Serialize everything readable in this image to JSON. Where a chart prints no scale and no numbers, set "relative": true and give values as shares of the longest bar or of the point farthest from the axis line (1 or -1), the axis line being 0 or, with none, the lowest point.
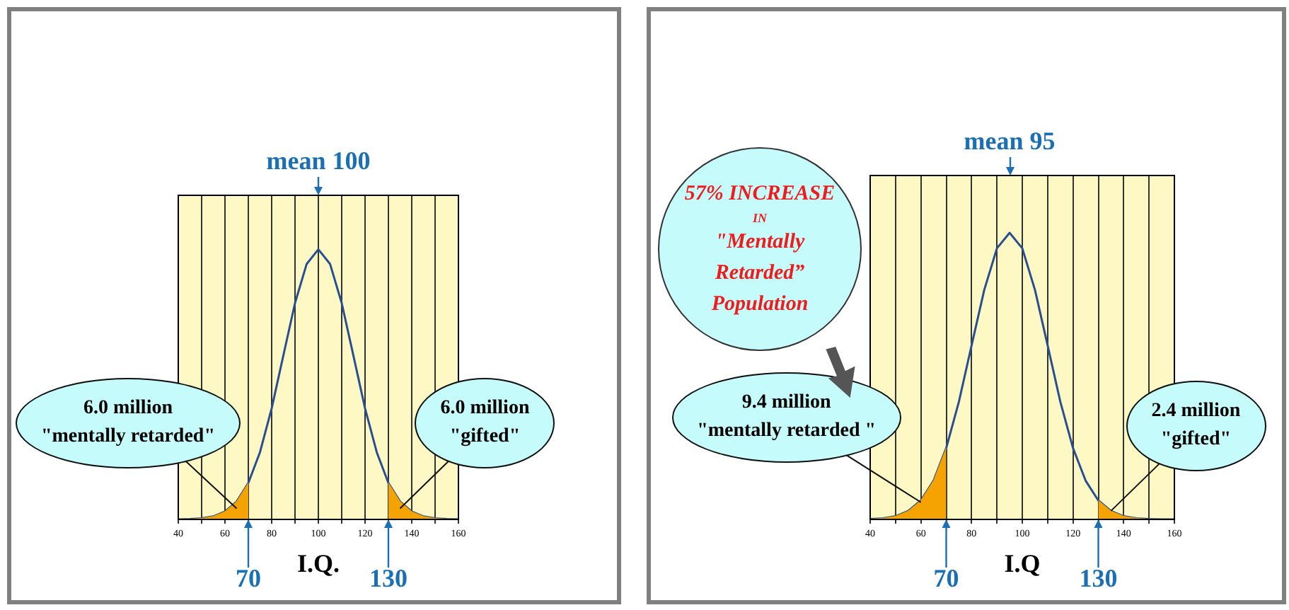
{
  "chart_data": [
    {
      "type": "line",
      "relative": true,
      "xlabel": "I.Q.",
      "xlim": [
        40,
        160
      ],
      "xticks": [
        40,
        {
          "value": 50,
          "label": null
        },
        60,
        {
          "value": 70,
          "label": null
        },
        80,
        {
          "value": 90,
          "label": null
        },
        100,
        {
          "value": 110,
          "label": null
        },
        120,
        {
          "value": 130,
          "label": null
        },
        140,
        {
          "value": 150,
          "label": null
        },
        160
      ],
      "grid": "x",
      "legend": false,
      "marker": "none",
      "series": [
        {
          "type": "area",
          "color": "#f5a300",
          "x": [
            40,
            45,
            50,
            55,
            60,
            65,
            70
          ],
          "values": [
            0,
            0.001,
            0.004,
            0.011,
            0.029,
            0.066,
            0.135
          ]
        },
        {
          "type": "area",
          "color": "#f5a300",
          "x": [
            130,
            135,
            140,
            145,
            150,
            155,
            160
          ],
          "values": [
            0.135,
            0.066,
            0.029,
            0.011,
            0.004,
            0.001,
            0
          ]
        },
        {
          "type": "line",
          "color": "#2a4f90",
          "x": [
            40,
            45,
            50,
            55,
            60,
            65,
            70,
            75,
            80,
            85,
            90,
            95,
            100,
            105,
            110,
            115,
            120,
            125,
            130,
            135,
            140,
            145,
            150,
            155,
            160
          ],
          "values": [
            0,
            0.001,
            0.004,
            0.011,
            0.029,
            0.066,
            0.135,
            0.249,
            0.411,
            0.607,
            0.801,
            0.946,
            1,
            0.946,
            0.801,
            0.607,
            0.411,
            0.249,
            0.135,
            0.066,
            0.029,
            0.011,
            0.004,
            0.001,
            0
          ]
        }
      ],
      "annotations": [
        "mean 100",
        {
          "text": "70",
          "x": 70,
          "y": 0
        },
        {
          "text": "130",
          "x": 130,
          "y": 0
        },
        {
          "text": "6.0 million\n\"mentally retarded\"",
          "x": 65,
          "y": 0.03
        },
        {
          "text": "6.0 million\n\"gifted\"",
          "x": 135,
          "y": 0.03
        }
      ]
    },
    {
      "type": "line",
      "relative": true,
      "xlabel": "I.Q",
      "xlim": [
        40,
        160
      ],
      "xticks": [
        40,
        {
          "value": 50,
          "label": null
        },
        60,
        {
          "value": 70,
          "label": null
        },
        80,
        {
          "value": 90,
          "label": null
        },
        100,
        {
          "value": 110,
          "label": null
        },
        120,
        {
          "value": 130,
          "label": null
        },
        140,
        {
          "value": 150,
          "label": null
        },
        160
      ],
      "grid": "x",
      "legend": false,
      "marker": "none",
      "series": [
        {
          "type": "area",
          "color": "#f5a300",
          "x": [
            40,
            45,
            50,
            55,
            60,
            65,
            70
          ],
          "values": [
            0.001,
            0.004,
            0.011,
            0.029,
            0.066,
            0.135,
            0.249
          ]
        },
        {
          "type": "area",
          "color": "#f5a300",
          "x": [
            130,
            135,
            140,
            145,
            150,
            155,
            160
          ],
          "values": [
            0.066,
            0.029,
            0.011,
            0.004,
            0.001,
            0,
            0
          ]
        },
        {
          "type": "line",
          "color": "#2a4f90",
          "x": [
            40,
            45,
            50,
            55,
            60,
            65,
            70,
            75,
            80,
            85,
            90,
            95,
            100,
            105,
            110,
            115,
            120,
            125,
            130,
            135,
            140,
            145,
            150,
            155,
            160
          ],
          "values": [
            0.001,
            0.004,
            0.011,
            0.029,
            0.066,
            0.135,
            0.249,
            0.411,
            0.607,
            0.801,
            0.946,
            1,
            0.946,
            0.801,
            0.607,
            0.411,
            0.249,
            0.135,
            0.066,
            0.029,
            0.011,
            0.004,
            0.001,
            0,
            0
          ]
        }
      ],
      "annotations": [
        "mean 95",
        {
          "text": "70",
          "x": 70,
          "y": 0
        },
        {
          "text": "130",
          "x": 130,
          "y": 0
        },
        {
          "text": "9.4 million\n\"mentally retarded \"",
          "x": 60,
          "y": 0.05
        },
        {
          "text": "2.4 million\n\"gifted\"",
          "x": 135,
          "y": 0.02
        },
        "57% INCREASE\nIN\n\"Mentally\nRetarded”\nPopulation"
      ]
    }
  ]
}
